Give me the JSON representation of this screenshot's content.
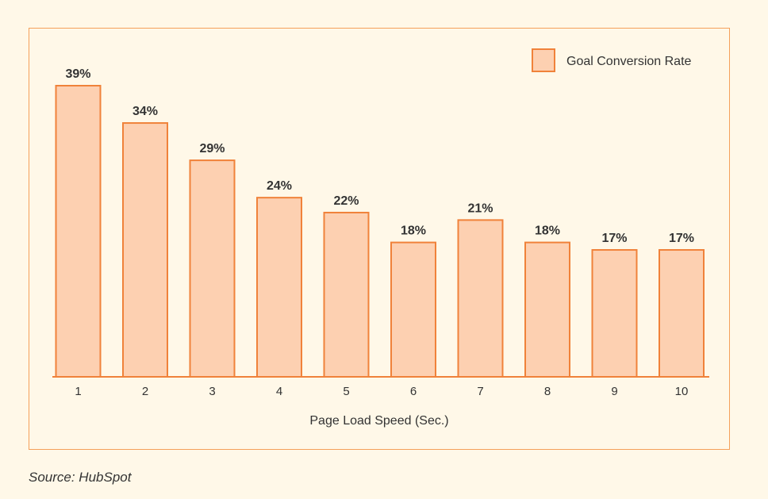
{
  "chart_data": {
    "type": "bar",
    "categories": [
      "1",
      "2",
      "3",
      "4",
      "5",
      "6",
      "7",
      "8",
      "9",
      "10"
    ],
    "series": [
      {
        "name": "Goal Conversion Rate",
        "values": [
          39,
          34,
          29,
          24,
          22,
          18,
          21,
          18,
          17,
          17
        ]
      }
    ],
    "data_labels": [
      "39%",
      "34%",
      "29%",
      "24%",
      "22%",
      "18%",
      "21%",
      "18%",
      "17%",
      "17%"
    ],
    "xlabel": "Page Load Speed (Sec.)",
    "ylabel": "",
    "ylim": [
      0,
      39
    ],
    "grid": false,
    "legend_position": "top-right",
    "colors": {
      "bar_fill": "#fdd0b1",
      "bar_stroke": "#f0823a",
      "axis": "#f0823a",
      "frame": "#f5a05a",
      "background": "#fff8e8",
      "text": "#333333"
    }
  },
  "source": "Source: HubSpot"
}
